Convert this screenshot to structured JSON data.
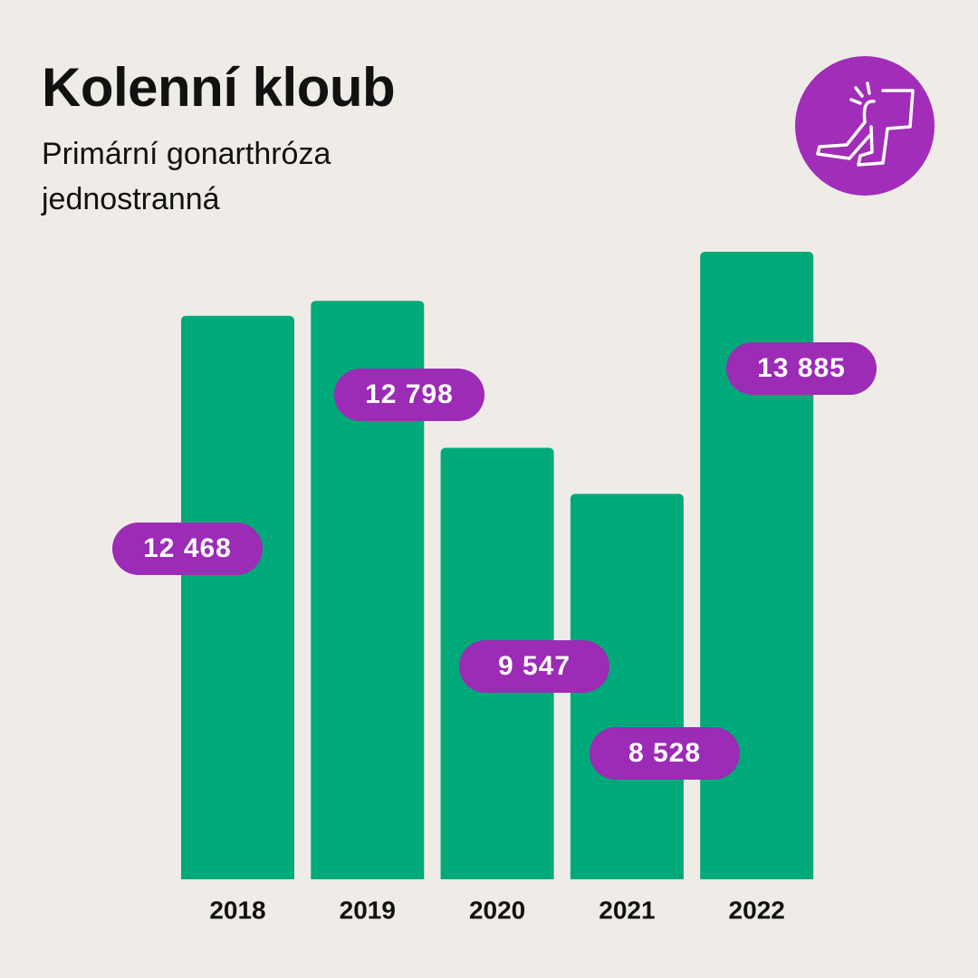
{
  "chart_data": {
    "type": "bar",
    "title": "Kolenní kloub",
    "subtitle": "Primární gonarthróza jednostranná",
    "categories": [
      "2018",
      "2019",
      "2020",
      "2021",
      "2022"
    ],
    "values": [
      12468,
      12798,
      9547,
      8528,
      13885
    ],
    "value_labels": [
      "12 468",
      "12 798",
      "9 547",
      "8 528",
      "13 885"
    ],
    "color": "#00a97a",
    "label_color": "#9c2bb6"
  }
}
